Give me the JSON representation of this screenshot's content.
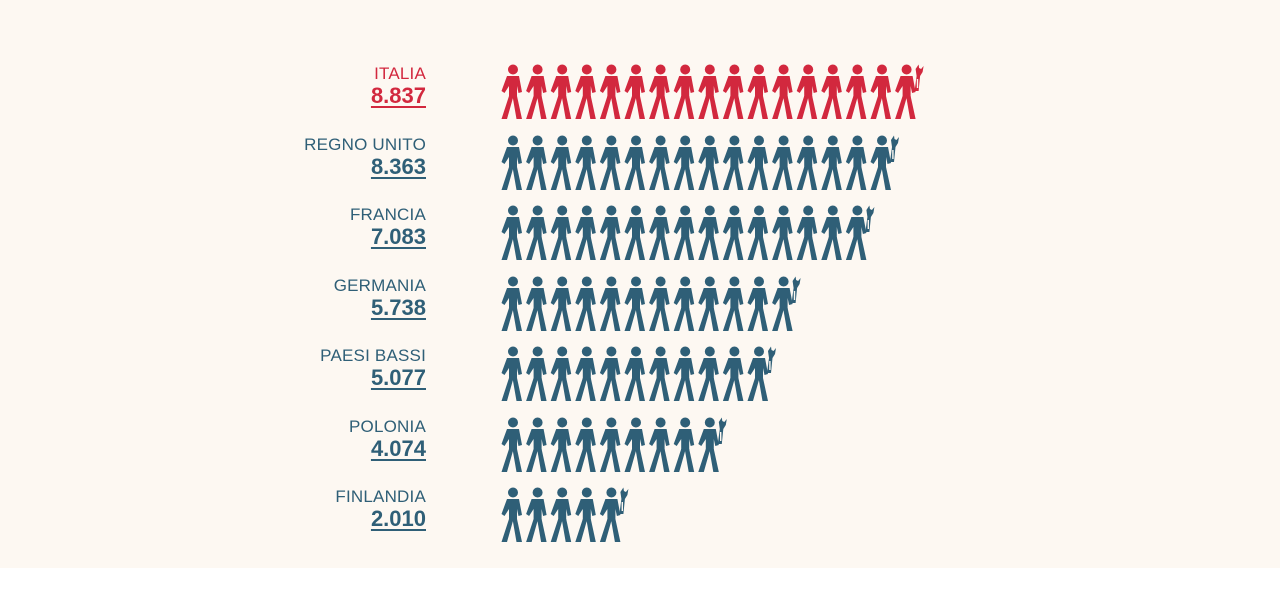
{
  "colors": {
    "highlight": "#d2283e",
    "default": "#2f5f77",
    "background": "#fdf8f2"
  },
  "icons": {
    "person": "person-walking-icon",
    "last": "person-with-wrench-icon"
  },
  "chart_data": {
    "type": "pictogram",
    "title": "",
    "categories": [
      "ITALIA",
      "REGNO UNITO",
      "FRANCIA",
      "GERMANIA",
      "PAESI BASSI",
      "POLONIA",
      "FINLANDIA"
    ],
    "labels": [
      "8.837",
      "8.363",
      "7.083",
      "5.738",
      "5.077",
      "4.074",
      "2.010"
    ],
    "values": [
      8837,
      8363,
      7083,
      5738,
      5077,
      4074,
      2010
    ],
    "icon_counts": [
      17,
      16,
      15,
      12,
      11,
      9,
      5
    ],
    "highlight_index": 0
  }
}
